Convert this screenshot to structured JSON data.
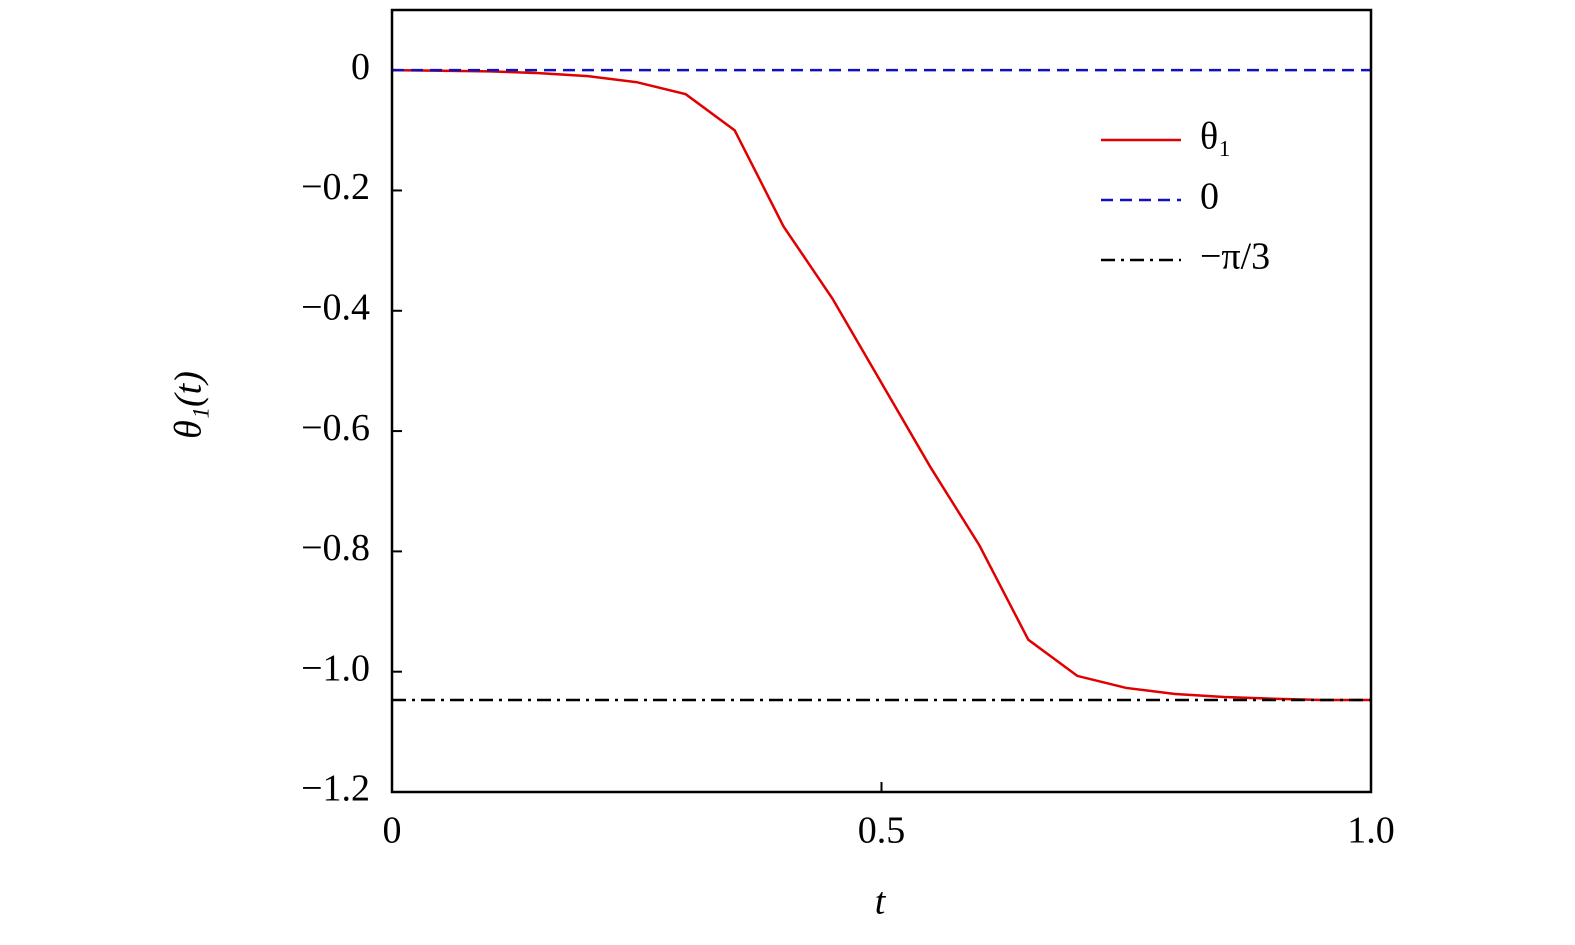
{
  "chart_data": {
    "type": "line",
    "xlabel": "t",
    "ylabel": "θ₁(t)",
    "xlim": [
      0,
      1
    ],
    "ylim": [
      -1.2,
      0.1
    ],
    "xticks": [
      0,
      0.5,
      {
        "value": 1,
        "label": "1.0"
      }
    ],
    "yticks": [
      0,
      {
        "value": -0.2,
        "label": "−0.2"
      },
      {
        "value": -0.4,
        "label": "−0.4"
      },
      {
        "value": -0.6,
        "label": "−0.6"
      },
      {
        "value": -0.8,
        "label": "−0.8"
      },
      {
        "value": -1,
        "label": "−1.0"
      },
      {
        "value": -1.2,
        "label": "−1.2"
      }
    ],
    "legend": "upper right",
    "series": [
      {
        "name": "θ₁",
        "color": "#e00000",
        "dash": "solid",
        "x": [
          0,
          0.05,
          0.1,
          0.15,
          0.2,
          0.25,
          0.3,
          0.35,
          0.4,
          0.45,
          0.5,
          0.55,
          0.6,
          0.65,
          0.7,
          0.75,
          0.8,
          0.85,
          0.9,
          0.95,
          1
        ],
        "values": [
          0,
          -0.001,
          -0.002,
          -0.005,
          -0.01,
          -0.02,
          -0.04,
          -0.1,
          -0.26,
          -0.38,
          -0.52,
          -0.66,
          -0.79,
          -0.947,
          -1.007,
          -1.027,
          -1.037,
          -1.042,
          -1.045,
          -1.047,
          -1.047
        ]
      },
      {
        "name": "0",
        "color": "#1010c0",
        "dash": "dashed",
        "x": [
          0,
          1
        ],
        "values": [
          0,
          0
        ]
      },
      {
        "name": "−π/3",
        "color": "#000000",
        "dash": "dashdot",
        "x": [
          0,
          1
        ],
        "values": [
          -1.047,
          -1.047
        ]
      }
    ]
  }
}
